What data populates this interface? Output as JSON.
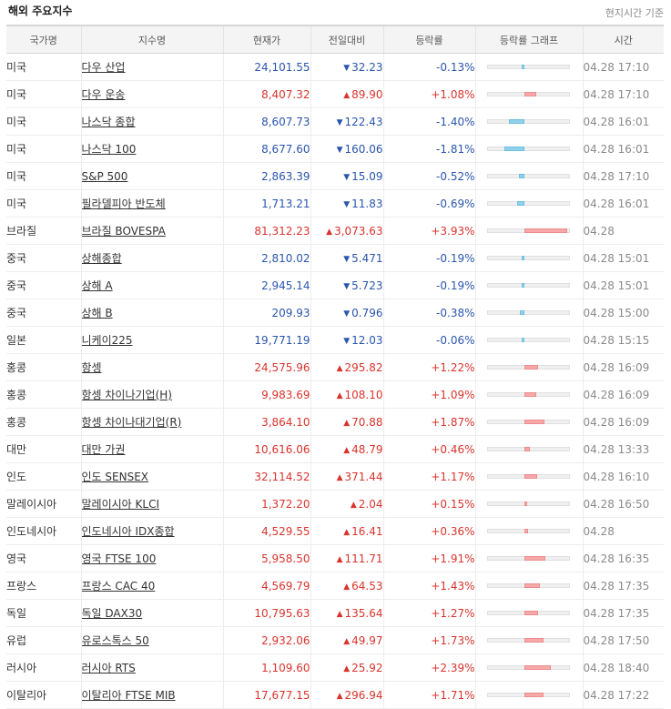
{
  "header": {
    "title": "해외 주요지수",
    "note": "현지시간 기준"
  },
  "columns": [
    "국가명",
    "지수명",
    "현재가",
    "전일대비",
    "등락률",
    "등락률 그래프",
    "시간"
  ],
  "colors": {
    "up": "#d8342c",
    "down": "#2a55ad",
    "bar_up": "#f7a8a8",
    "bar_down": "#8fd1ea"
  },
  "rows": [
    {
      "country": "미국",
      "name": "다우 산업",
      "price": "24,101.55",
      "dir": "down",
      "change": "32.23",
      "rate": "-0.13%",
      "rate_value": -0.13,
      "time": "04.28 17:10"
    },
    {
      "country": "미국",
      "name": "다우 운송",
      "price": "8,407.32",
      "dir": "up",
      "change": "89.90",
      "rate": "+1.08%",
      "rate_value": 1.08,
      "time": "04.28 17:10"
    },
    {
      "country": "미국",
      "name": "나스닥 종합",
      "price": "8,607.73",
      "dir": "down",
      "change": "122.43",
      "rate": "-1.40%",
      "rate_value": -1.4,
      "time": "04.28 16:01"
    },
    {
      "country": "미국",
      "name": "나스닥 100",
      "price": "8,677.60",
      "dir": "down",
      "change": "160.06",
      "rate": "-1.81%",
      "rate_value": -1.81,
      "time": "04.28 16:01"
    },
    {
      "country": "미국",
      "name": "S&P 500",
      "price": "2,863.39",
      "dir": "down",
      "change": "15.09",
      "rate": "-0.52%",
      "rate_value": -0.52,
      "time": "04.28 17:10"
    },
    {
      "country": "미국",
      "name": "필라델피아 반도체",
      "price": "1,713.21",
      "dir": "down",
      "change": "11.83",
      "rate": "-0.69%",
      "rate_value": -0.69,
      "time": "04.28 16:01"
    },
    {
      "country": "브라질",
      "name": "브라질 BOVESPA",
      "price": "81,312.23",
      "dir": "up",
      "change": "3,073.63",
      "rate": "+3.93%",
      "rate_value": 3.93,
      "time": "04.28"
    },
    {
      "country": "중국",
      "name": "상해종합",
      "price": "2,810.02",
      "dir": "down",
      "change": "5.471",
      "rate": "-0.19%",
      "rate_value": -0.19,
      "time": "04.28 15:01",
      "group_start": true
    },
    {
      "country": "중국",
      "name": "상해 A",
      "price": "2,945.14",
      "dir": "down",
      "change": "5.723",
      "rate": "-0.19%",
      "rate_value": -0.19,
      "time": "04.28 15:01"
    },
    {
      "country": "중국",
      "name": "상해 B",
      "price": "209.93",
      "dir": "down",
      "change": "0.796",
      "rate": "-0.38%",
      "rate_value": -0.38,
      "time": "04.28 15:00"
    },
    {
      "country": "일본",
      "name": "니케이225",
      "price": "19,771.19",
      "dir": "down",
      "change": "12.03",
      "rate": "-0.06%",
      "rate_value": -0.06,
      "time": "04.28 15:15"
    },
    {
      "country": "홍콩",
      "name": "항셍",
      "price": "24,575.96",
      "dir": "up",
      "change": "295.82",
      "rate": "+1.22%",
      "rate_value": 1.22,
      "time": "04.28 16:09"
    },
    {
      "country": "홍콩",
      "name": "항셍 차이나기업(H)",
      "price": "9,983.69",
      "dir": "up",
      "change": "108.10",
      "rate": "+1.09%",
      "rate_value": 1.09,
      "time": "04.28 16:09"
    },
    {
      "country": "홍콩",
      "name": "항셍 차이나대기업(R)",
      "price": "3,864.10",
      "dir": "up",
      "change": "70.88",
      "rate": "+1.87%",
      "rate_value": 1.87,
      "time": "04.28 16:09"
    },
    {
      "country": "대만",
      "name": "대만 가권",
      "price": "10,616.06",
      "dir": "up",
      "change": "48.79",
      "rate": "+0.46%",
      "rate_value": 0.46,
      "time": "04.28 13:33"
    },
    {
      "country": "인도",
      "name": "인도 SENSEX",
      "price": "32,114.52",
      "dir": "up",
      "change": "371.44",
      "rate": "+1.17%",
      "rate_value": 1.17,
      "time": "04.28 16:10"
    },
    {
      "country": "말레이시아",
      "name": "말레이시아 KLCI",
      "price": "1,372.20",
      "dir": "up",
      "change": "2.04",
      "rate": "+0.15%",
      "rate_value": 0.15,
      "time": "04.28 16:50"
    },
    {
      "country": "인도네시아",
      "name": "인도네시아 IDX종합",
      "price": "4,529.55",
      "dir": "up",
      "change": "16.41",
      "rate": "+0.36%",
      "rate_value": 0.36,
      "time": "04.28"
    },
    {
      "country": "영국",
      "name": "영국 FTSE 100",
      "price": "5,958.50",
      "dir": "up",
      "change": "111.71",
      "rate": "+1.91%",
      "rate_value": 1.91,
      "time": "04.28 16:35",
      "group_start": true
    },
    {
      "country": "프랑스",
      "name": "프랑스 CAC 40",
      "price": "4,569.79",
      "dir": "up",
      "change": "64.53",
      "rate": "+1.43%",
      "rate_value": 1.43,
      "time": "04.28 17:35"
    },
    {
      "country": "독일",
      "name": "독일 DAX30",
      "price": "10,795.63",
      "dir": "up",
      "change": "135.64",
      "rate": "+1.27%",
      "rate_value": 1.27,
      "time": "04.28 17:35"
    },
    {
      "country": "유럽",
      "name": "유로스톡스 50",
      "price": "2,932.06",
      "dir": "up",
      "change": "49.97",
      "rate": "+1.73%",
      "rate_value": 1.73,
      "time": "04.28 17:50"
    },
    {
      "country": "러시아",
      "name": "러시아 RTS",
      "price": "1,109.60",
      "dir": "up",
      "change": "25.92",
      "rate": "+2.39%",
      "rate_value": 2.39,
      "time": "04.28 18:40"
    },
    {
      "country": "이탈리아",
      "name": "이탈리아 FTSE MIB",
      "price": "17,677.15",
      "dir": "up",
      "change": "296.94",
      "rate": "+1.71%",
      "rate_value": 1.71,
      "time": "04.28 17:22"
    }
  ]
}
